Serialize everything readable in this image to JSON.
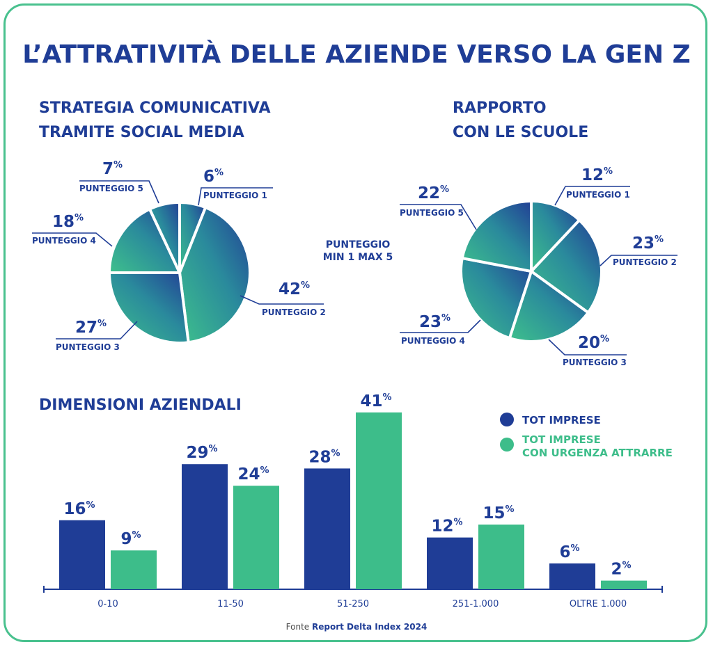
{
  "title": "L’ATTRATIVITÀ DELLE AZIENDE VERSO LA GEN Z",
  "note": {
    "line1": "PUNTEGGIO",
    "line2": "MIN 1 MAX 5"
  },
  "source": {
    "prefix": "Fonte",
    "name": "Report Delta Index 2024"
  },
  "colors": {
    "primary": "#1f3d96",
    "secondary": "#3dbd8a",
    "border": "#49c18e"
  },
  "chart_data": [
    {
      "type": "pie",
      "title_lines": [
        "STRATEGIA COMUNICATIVA",
        "TRAMITE SOCIAL MEDIA"
      ],
      "slices": [
        {
          "label": "PUNTEGGIO 1",
          "value": 6
        },
        {
          "label": "PUNTEGGIO 2",
          "value": 42
        },
        {
          "label": "PUNTEGGIO 3",
          "value": 27
        },
        {
          "label": "PUNTEGGIO 4",
          "value": 18
        },
        {
          "label": "PUNTEGGIO 5",
          "value": 7
        }
      ],
      "unit": "%"
    },
    {
      "type": "pie",
      "title_lines": [
        "RAPPORTO",
        "CON LE SCUOLE"
      ],
      "slices": [
        {
          "label": "PUNTEGGIO 1",
          "value": 12
        },
        {
          "label": "PUNTEGGIO 2",
          "value": 23
        },
        {
          "label": "PUNTEGGIO 3",
          "value": 20
        },
        {
          "label": "PUNTEGGIO 4",
          "value": 23
        },
        {
          "label": "PUNTEGGIO 5",
          "value": 22
        }
      ],
      "unit": "%"
    },
    {
      "type": "bar",
      "title": "DIMENSIONI AZIENDALI",
      "categories": [
        "0-10",
        "11-50",
        "51-250",
        "251-1.000",
        "OLTRE 1.000"
      ],
      "series": [
        {
          "name": "TOT IMPRESE",
          "values": [
            16,
            29,
            28,
            12,
            6
          ],
          "color": "#1f3d96"
        },
        {
          "name": "TOT IMPRESE\nCON URGENZA ATTRARRE",
          "values": [
            9,
            24,
            41,
            15,
            2
          ],
          "color": "#3dbd8a"
        }
      ],
      "unit": "%",
      "legend": "top-right"
    }
  ]
}
